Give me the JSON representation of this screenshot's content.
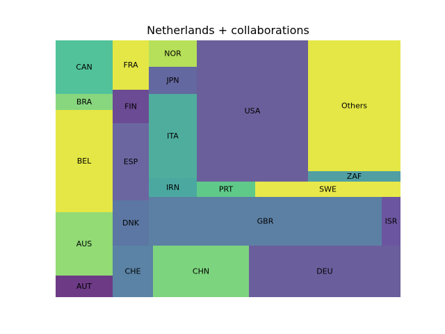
{
  "chart_data": {
    "type": "treemap",
    "title": "Netherlands + collaborations",
    "cells": [
      {
        "label": "CAN",
        "color": "#51c29a"
      },
      {
        "label": "BRA",
        "color": "#88d77e"
      },
      {
        "label": "BEL",
        "color": "#e4e745"
      },
      {
        "label": "AUS",
        "color": "#92db75"
      },
      {
        "label": "AUT",
        "color": "#6d3b86"
      },
      {
        "label": "FRA",
        "color": "#e4e745"
      },
      {
        "label": "FIN",
        "color": "#6b4b94"
      },
      {
        "label": "ESP",
        "color": "#6b66a0"
      },
      {
        "label": "DNK",
        "color": "#5c77a3"
      },
      {
        "label": "CHE",
        "color": "#5a83a5"
      },
      {
        "label": "NOR",
        "color": "#b7e05a"
      },
      {
        "label": "JPN",
        "color": "#6468a0"
      },
      {
        "label": "ITA",
        "color": "#4fad9d"
      },
      {
        "label": "IRN",
        "color": "#4ba8a1"
      },
      {
        "label": "USA",
        "color": "#6b5f9b"
      },
      {
        "label": "PRT",
        "color": "#5fc98a"
      },
      {
        "label": "Others",
        "color": "#e4e745"
      },
      {
        "label": "ZAF",
        "color": "#519fa3"
      },
      {
        "label": "SWE",
        "color": "#e8e84a"
      },
      {
        "label": "GBR",
        "color": "#5c80a4"
      },
      {
        "label": "ISR",
        "color": "#6c55a0"
      },
      {
        "label": "CHN",
        "color": "#7dd47e"
      },
      {
        "label": "DEU",
        "color": "#6b5e9c"
      }
    ]
  }
}
